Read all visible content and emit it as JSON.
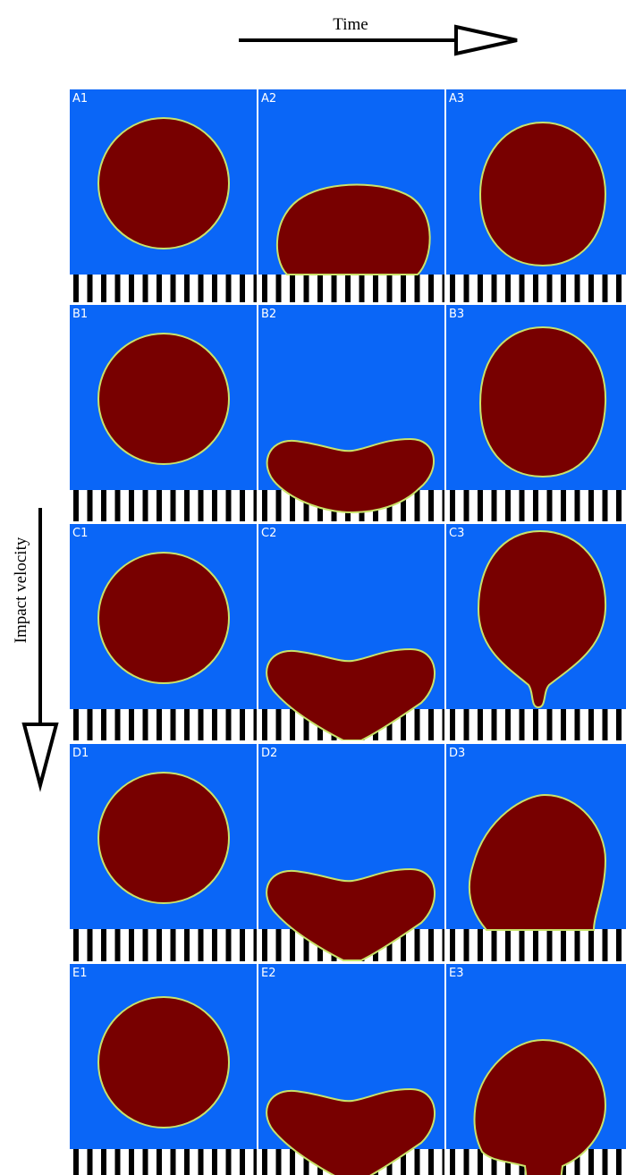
{
  "header": {
    "time_label": "Time",
    "velocity_label": "Impact velocity"
  },
  "panels": [
    {
      "label": "A1"
    },
    {
      "label": "A2"
    },
    {
      "label": "A3"
    },
    {
      "label": "B1"
    },
    {
      "label": "B2"
    },
    {
      "label": "B3"
    },
    {
      "label": "C1"
    },
    {
      "label": "C2"
    },
    {
      "label": "C3"
    },
    {
      "label": "D1"
    },
    {
      "label": "D2"
    },
    {
      "label": "D3"
    },
    {
      "label": "E1"
    },
    {
      "label": "E2"
    },
    {
      "label": "E3"
    }
  ]
}
